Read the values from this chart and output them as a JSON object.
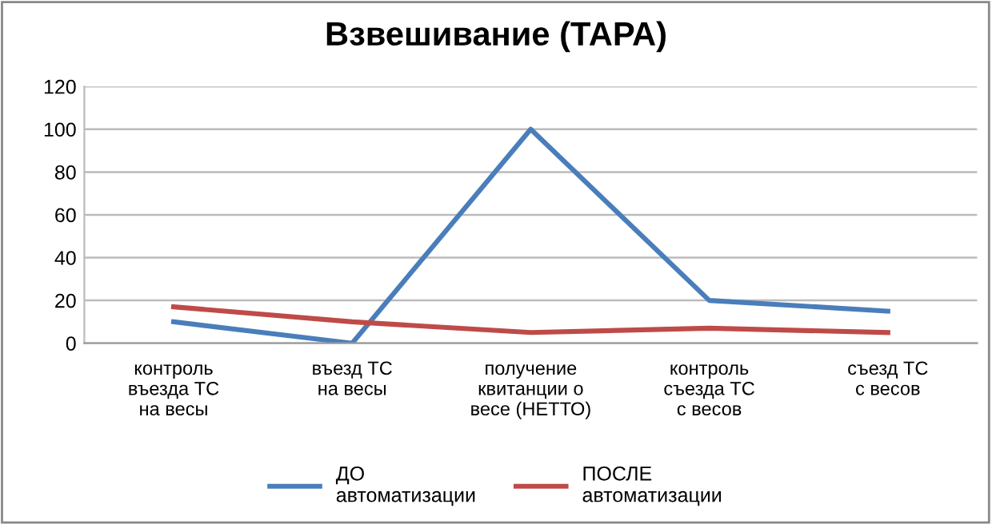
{
  "chart_data": {
    "type": "line",
    "title": "Взвешивание (ТАРА)",
    "categories": [
      "контроль\nвъезда ТС\nна весы",
      "въезд ТС\nна весы",
      "получение\nквитанции о\nвесе (НЕТТО)",
      "контроль\nсъезда ТС\nс весов",
      "съезд ТС\nс весов"
    ],
    "series": [
      {
        "name": "ДО\nавтоматизации",
        "color": "#4a7ebb",
        "values": [
          10,
          0,
          100,
          20,
          15
        ]
      },
      {
        "name": "ПОСЛЕ\nавтоматизации",
        "color": "#be4b48",
        "values": [
          17,
          10,
          5,
          7,
          5
        ]
      }
    ],
    "ylim": [
      0,
      120
    ],
    "yticks": [
      0,
      20,
      40,
      60,
      80,
      100,
      120
    ],
    "grid": "y",
    "legend": "bottom",
    "marker": "none",
    "line_style": "solid"
  }
}
